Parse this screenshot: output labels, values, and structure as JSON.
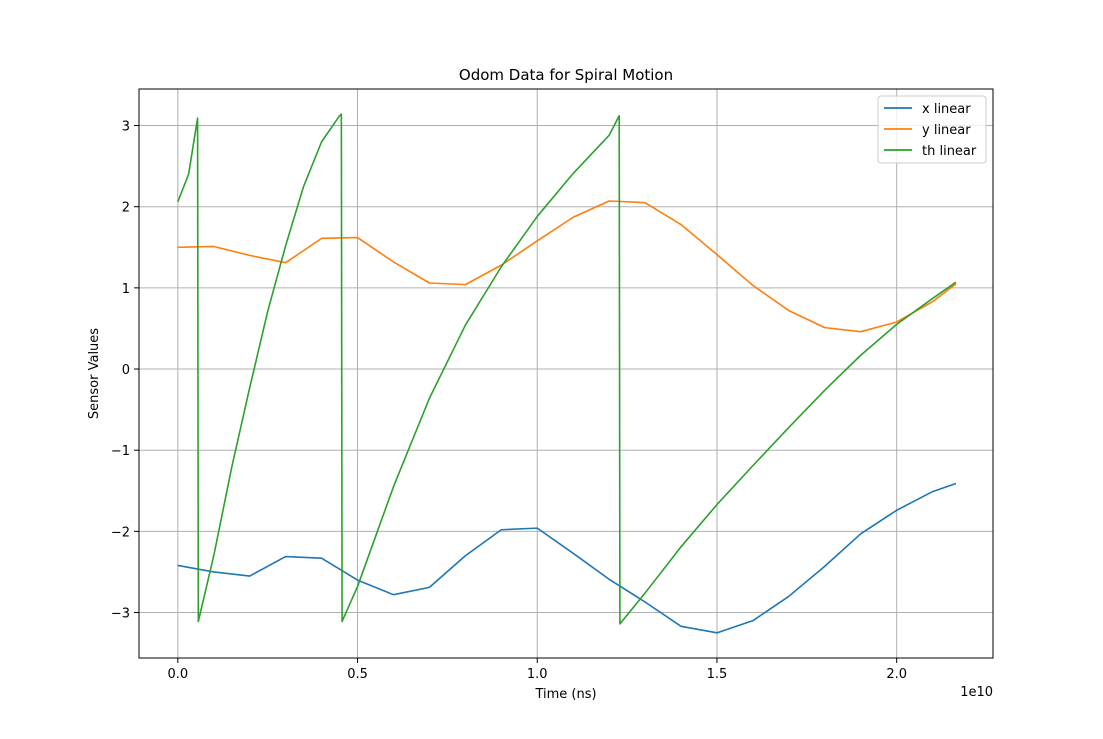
{
  "chart_data": {
    "type": "line",
    "title": "Odom Data for Spiral Motion",
    "xlabel": "Time (ns)",
    "ylabel": "Sensor Values",
    "x_offset_label": "1e10",
    "xlim": [
      -0.108,
      2.268
    ],
    "ylim": [
      -3.56,
      3.45
    ],
    "x_ticks": [
      0.0,
      0.5,
      1.0,
      1.5,
      2.0
    ],
    "x_tick_labels": [
      "0.0",
      "0.5",
      "1.0",
      "1.5",
      "2.0"
    ],
    "y_ticks": [
      -3,
      -2,
      -1,
      0,
      1,
      2,
      3
    ],
    "y_tick_labels": [
      "−3",
      "−2",
      "−1",
      "0",
      "1",
      "2",
      "3"
    ],
    "grid": true,
    "legend_position": "top-right",
    "series": [
      {
        "name": "x linear",
        "color": "#1f77b4",
        "x": [
          0.0,
          0.1,
          0.2,
          0.3,
          0.4,
          0.5,
          0.6,
          0.7,
          0.8,
          0.9,
          1.0,
          1.1,
          1.2,
          1.3,
          1.4,
          1.5,
          1.6,
          1.7,
          1.8,
          1.9,
          2.0,
          2.1,
          2.165
        ],
        "y": [
          -2.42,
          -2.5,
          -2.55,
          -2.31,
          -2.33,
          -2.6,
          -2.78,
          -2.69,
          -2.3,
          -1.98,
          -1.96,
          -2.27,
          -2.59,
          -2.87,
          -3.17,
          -3.25,
          -3.1,
          -2.8,
          -2.43,
          -2.03,
          -1.74,
          -1.51,
          -1.41
        ]
      },
      {
        "name": "y linear",
        "color": "#ff7f0e",
        "x": [
          0.0,
          0.1,
          0.2,
          0.3,
          0.4,
          0.5,
          0.6,
          0.7,
          0.8,
          0.9,
          1.0,
          1.1,
          1.2,
          1.3,
          1.4,
          1.5,
          1.6,
          1.7,
          1.8,
          1.9,
          2.0,
          2.1,
          2.165
        ],
        "y": [
          1.5,
          1.51,
          1.4,
          1.31,
          1.61,
          1.62,
          1.32,
          1.06,
          1.04,
          1.28,
          1.58,
          1.87,
          2.07,
          2.05,
          1.78,
          1.41,
          1.03,
          0.72,
          0.51,
          0.46,
          0.58,
          0.83,
          1.05
        ]
      },
      {
        "name": "th linear",
        "color": "#2ca02c",
        "x": [
          0.0,
          0.03,
          0.055,
          0.057,
          0.1,
          0.15,
          0.2,
          0.25,
          0.3,
          0.35,
          0.4,
          0.45,
          0.455,
          0.457,
          0.5,
          0.6,
          0.7,
          0.8,
          0.9,
          1.0,
          1.1,
          1.2,
          1.228,
          1.23,
          1.3,
          1.4,
          1.5,
          1.6,
          1.7,
          1.8,
          1.9,
          2.0,
          2.1,
          2.165
        ],
        "y": [
          2.06,
          2.4,
          3.09,
          -3.11,
          -2.3,
          -1.21,
          -0.23,
          0.71,
          1.52,
          2.25,
          2.8,
          3.12,
          3.14,
          -3.11,
          -2.68,
          -1.45,
          -0.36,
          0.54,
          1.26,
          1.88,
          2.41,
          2.88,
          3.12,
          -3.14,
          -2.76,
          -2.19,
          -1.67,
          -1.19,
          -0.72,
          -0.26,
          0.17,
          0.55,
          0.87,
          1.07
        ]
      }
    ]
  }
}
